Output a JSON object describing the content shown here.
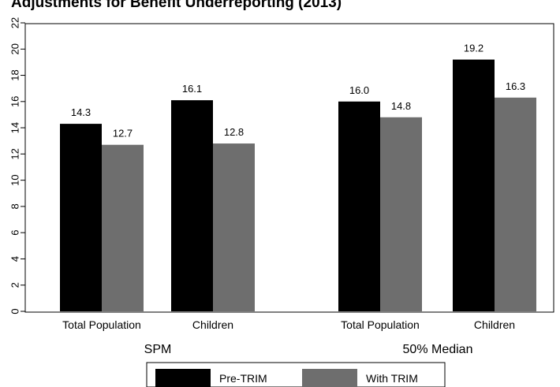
{
  "chart_data": {
    "type": "bar",
    "title": "Adjustments for Benefit Underreporting (2013)",
    "groups": [
      {
        "label": "SPM",
        "categories": [
          "Total Population",
          "Children"
        ]
      },
      {
        "label": "50% Median",
        "categories": [
          "Total Population",
          "Children"
        ]
      }
    ],
    "series": [
      {
        "name": "Pre-TRIM",
        "color": "#000000",
        "values": [
          14.3,
          16.1,
          16.0,
          19.2
        ]
      },
      {
        "name": "With TRIM",
        "color": "#6e6e6e",
        "values": [
          12.7,
          12.8,
          14.8,
          16.3
        ]
      }
    ],
    "data_labels": {
      "Pre-TRIM": [
        "14.3",
        "16.1",
        "16.0",
        "19.2"
      ],
      "With TRIM": [
        "12.7",
        "12.8",
        "14.8",
        "16.3"
      ]
    },
    "ylim": [
      0,
      22
    ],
    "yticks": [
      0,
      2,
      4,
      6,
      8,
      10,
      12,
      14,
      16,
      18,
      20,
      22
    ],
    "xlabel": "",
    "ylabel": "",
    "grid": false,
    "legend_position": "bottom"
  }
}
